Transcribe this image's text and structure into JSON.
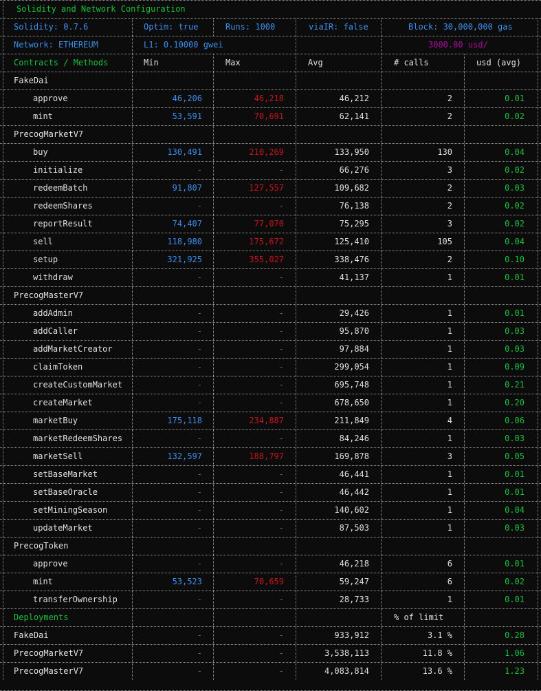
{
  "config": {
    "title": "Solidity and Network Configuration",
    "solidity": "Solidity: 0.7.6",
    "optim": "Optim: true",
    "runs": "Runs: 1000",
    "viair": "viaIR: false",
    "block": "Block: 30,000,000 gas",
    "network": "Network: ETHEREUM",
    "l1": "L1: 0.10000 gwei",
    "price": "3000.00 usd/"
  },
  "headers": {
    "methods": "Contracts / Methods",
    "min": "Min",
    "max": "Max",
    "avg": "Avg",
    "calls": "# calls",
    "usd": "usd (avg)",
    "deployments": "Deployments",
    "pct_limit": "% of limit"
  },
  "contracts": [
    {
      "name": "FakeDai",
      "methods": [
        {
          "name": "approve",
          "min": "46,206",
          "max": "46,218",
          "avg": "46,212",
          "calls": "2",
          "usd": "0.01"
        },
        {
          "name": "mint",
          "min": "53,591",
          "max": "70,691",
          "avg": "62,141",
          "calls": "2",
          "usd": "0.02"
        }
      ]
    },
    {
      "name": "PrecogMarketV7",
      "methods": [
        {
          "name": "buy",
          "min": "130,491",
          "max": "210,269",
          "avg": "133,950",
          "calls": "130",
          "usd": "0.04"
        },
        {
          "name": "initialize",
          "min": "-",
          "max": "-",
          "avg": "66,276",
          "calls": "3",
          "usd": "0.02"
        },
        {
          "name": "redeemBatch",
          "min": "91,807",
          "max": "127,557",
          "avg": "109,682",
          "calls": "2",
          "usd": "0.03"
        },
        {
          "name": "redeemShares",
          "min": "-",
          "max": "-",
          "avg": "76,138",
          "calls": "2",
          "usd": "0.02"
        },
        {
          "name": "reportResult",
          "min": "74,407",
          "max": "77,070",
          "avg": "75,295",
          "calls": "3",
          "usd": "0.02"
        },
        {
          "name": "sell",
          "min": "118,980",
          "max": "175,672",
          "avg": "125,410",
          "calls": "105",
          "usd": "0.04"
        },
        {
          "name": "setup",
          "min": "321,925",
          "max": "355,027",
          "avg": "338,476",
          "calls": "2",
          "usd": "0.10"
        },
        {
          "name": "withdraw",
          "min": "-",
          "max": "-",
          "avg": "41,137",
          "calls": "1",
          "usd": "0.01"
        }
      ]
    },
    {
      "name": "PrecogMasterV7",
      "methods": [
        {
          "name": "addAdmin",
          "min": "-",
          "max": "-",
          "avg": "29,426",
          "calls": "1",
          "usd": "0.01"
        },
        {
          "name": "addCaller",
          "min": "-",
          "max": "-",
          "avg": "95,870",
          "calls": "1",
          "usd": "0.03"
        },
        {
          "name": "addMarketCreator",
          "min": "-",
          "max": "-",
          "avg": "97,884",
          "calls": "1",
          "usd": "0.03"
        },
        {
          "name": "claimToken",
          "min": "-",
          "max": "-",
          "avg": "299,054",
          "calls": "1",
          "usd": "0.09"
        },
        {
          "name": "createCustomMarket",
          "min": "-",
          "max": "-",
          "avg": "695,748",
          "calls": "1",
          "usd": "0.21"
        },
        {
          "name": "createMarket",
          "min": "-",
          "max": "-",
          "avg": "678,650",
          "calls": "1",
          "usd": "0.20"
        },
        {
          "name": "marketBuy",
          "min": "175,118",
          "max": "234,887",
          "avg": "211,849",
          "calls": "4",
          "usd": "0.06"
        },
        {
          "name": "marketRedeemShares",
          "min": "-",
          "max": "-",
          "avg": "84,246",
          "calls": "1",
          "usd": "0.03"
        },
        {
          "name": "marketSell",
          "min": "132,597",
          "max": "188,797",
          "avg": "169,878",
          "calls": "3",
          "usd": "0.05"
        },
        {
          "name": "setBaseMarket",
          "min": "-",
          "max": "-",
          "avg": "46,441",
          "calls": "1",
          "usd": "0.01"
        },
        {
          "name": "setBaseOracle",
          "min": "-",
          "max": "-",
          "avg": "46,442",
          "calls": "1",
          "usd": "0.01"
        },
        {
          "name": "setMiningSeason",
          "min": "-",
          "max": "-",
          "avg": "140,602",
          "calls": "1",
          "usd": "0.04"
        },
        {
          "name": "updateMarket",
          "min": "-",
          "max": "-",
          "avg": "87,503",
          "calls": "1",
          "usd": "0.03"
        }
      ]
    },
    {
      "name": "PrecogToken",
      "methods": [
        {
          "name": "approve",
          "min": "-",
          "max": "-",
          "avg": "46,218",
          "calls": "6",
          "usd": "0.01"
        },
        {
          "name": "mint",
          "min": "53,523",
          "max": "70,659",
          "avg": "59,247",
          "calls": "6",
          "usd": "0.02"
        },
        {
          "name": "transferOwnership",
          "min": "-",
          "max": "-",
          "avg": "28,733",
          "calls": "1",
          "usd": "0.01"
        }
      ]
    }
  ],
  "deployments": [
    {
      "name": "FakeDai",
      "min": "-",
      "max": "-",
      "avg": "933,912",
      "pct": "3.1 %",
      "usd": "0.28"
    },
    {
      "name": "PrecogMarketV7",
      "min": "-",
      "max": "-",
      "avg": "3,538,113",
      "pct": "11.8 %",
      "usd": "1.06"
    },
    {
      "name": "PrecogMasterV7",
      "min": "-",
      "max": "-",
      "avg": "4,083,814",
      "pct": "13.6 %",
      "usd": "1.23"
    }
  ],
  "colors": {
    "label": "#19c23a",
    "min": "#3b8eea",
    "max": "#c4161c",
    "price": "#a9119a",
    "dash": "#6a6a6a"
  }
}
